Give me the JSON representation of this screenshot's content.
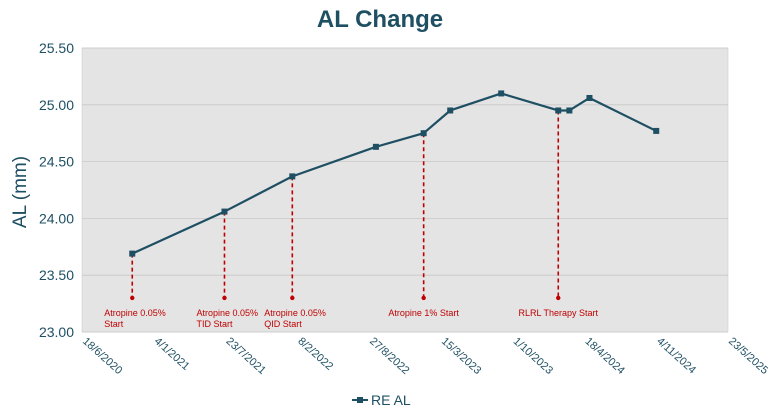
{
  "chart_data": {
    "type": "line",
    "title": "AL Change",
    "xlabel": "",
    "ylabel": "AL (mm)",
    "ylim": [
      23.0,
      25.5
    ],
    "yticks": [
      "23.00",
      "23.50",
      "24.00",
      "24.50",
      "25.00",
      "25.50"
    ],
    "xlim": [
      "2020-06-18",
      "2025-05-23"
    ],
    "xticks": [
      {
        "date": "2020-06-18",
        "label": "18/6/2020"
      },
      {
        "date": "2021-01-04",
        "label": "4/1/2021"
      },
      {
        "date": "2021-07-23",
        "label": "23/7/2021"
      },
      {
        "date": "2022-02-08",
        "label": "8/2/2022"
      },
      {
        "date": "2022-08-27",
        "label": "27/8/2022"
      },
      {
        "date": "2023-03-15",
        "label": "15/3/2023"
      },
      {
        "date": "2023-10-01",
        "label": "1/10/2023"
      },
      {
        "date": "2024-04-18",
        "label": "18/4/2024"
      },
      {
        "date": "2024-11-04",
        "label": "4/11/2024"
      },
      {
        "date": "2025-05-23",
        "label": "23/5/2025"
      }
    ],
    "series": [
      {
        "name": "RE AL",
        "color": "#1e4f63",
        "points": [
          {
            "x": "2020-11-05",
            "y": 23.69
          },
          {
            "x": "2021-07-20",
            "y": 24.06
          },
          {
            "x": "2022-01-25",
            "y": 24.37
          },
          {
            "x": "2022-09-15",
            "y": 24.63
          },
          {
            "x": "2023-01-26",
            "y": 24.75
          },
          {
            "x": "2023-04-10",
            "y": 24.95
          },
          {
            "x": "2023-08-30",
            "y": 25.1
          },
          {
            "x": "2024-02-05",
            "y": 24.95
          },
          {
            "x": "2024-03-07",
            "y": 24.95
          },
          {
            "x": "2024-05-02",
            "y": 25.06
          },
          {
            "x": "2024-11-04",
            "y": 24.77
          }
        ]
      }
    ],
    "annotations": [
      {
        "x": "2020-11-05",
        "y_top": 23.69,
        "y_bottom": 23.3,
        "lines": [
          "Atropine 0.05%",
          "Start"
        ],
        "anchor": "start"
      },
      {
        "x": "2021-07-20",
        "y_top": 24.06,
        "y_bottom": 23.3,
        "lines": [
          "Atropine 0.05%",
          "TID Start"
        ],
        "anchor": "start"
      },
      {
        "x": "2022-01-25",
        "y_top": 24.37,
        "y_bottom": 23.3,
        "lines": [
          "Atropine 0.05%",
          "QID Start"
        ],
        "anchor": "start"
      },
      {
        "x": "2023-01-26",
        "y_top": 24.75,
        "y_bottom": 23.3,
        "lines": [
          "Atropine 1% Start"
        ],
        "anchor": "middle"
      },
      {
        "x": "2024-02-05",
        "y_top": 24.95,
        "y_bottom": 23.3,
        "lines": [
          "RLRL Therapy Start"
        ],
        "anchor": "middle"
      }
    ],
    "annotation_color": "#c00000",
    "plot_background": "#e4e4e4",
    "axis_color": "#1e4f63",
    "grid": true,
    "legend_position": "bottom"
  }
}
